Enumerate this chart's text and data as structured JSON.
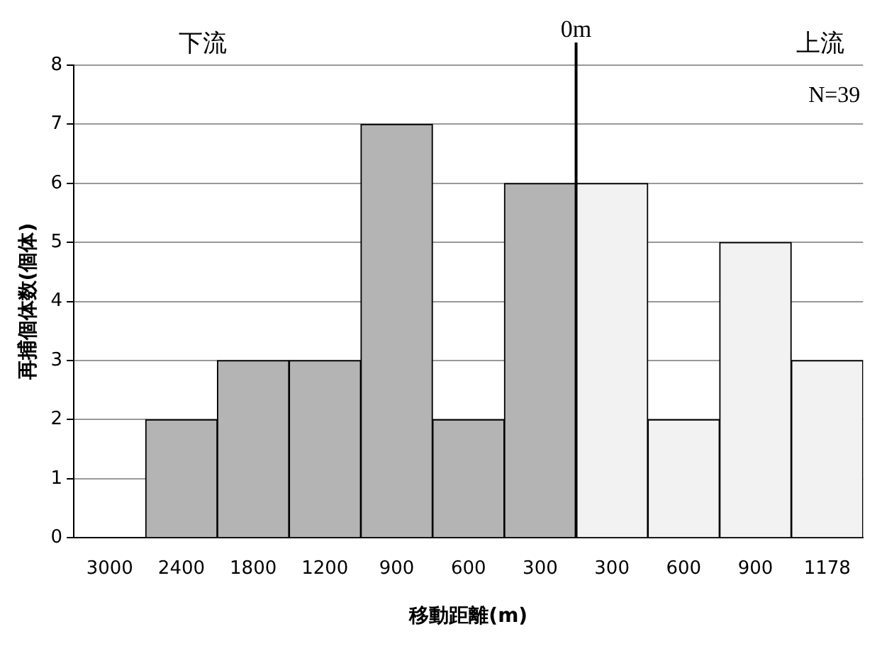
{
  "chart_data": {
    "type": "bar",
    "xlabel": "移動距離(m)",
    "ylabel": "再捕個体数(個体)",
    "categories": [
      "3000",
      "2400",
      "1800",
      "1200",
      "900",
      "600",
      "300",
      "300",
      "600",
      "900",
      "1178"
    ],
    "values": [
      0,
      2,
      3,
      3,
      7,
      2,
      6,
      6,
      2,
      5,
      3
    ],
    "colors": [
      "#b4b4b4",
      "#b4b4b4",
      "#b4b4b4",
      "#b4b4b4",
      "#b4b4b4",
      "#b4b4b4",
      "#b4b4b4",
      "#f2f2f2",
      "#f2f2f2",
      "#f2f2f2",
      "#f2f2f2"
    ],
    "ylim": [
      0,
      8
    ],
    "yticks": [
      0,
      1,
      2,
      3,
      4,
      5,
      6,
      7,
      8
    ],
    "grid": "y",
    "legend": false,
    "ref_lines": [
      {
        "axis": "x",
        "value": "300",
        "label": "0m",
        "color": "#000000"
      }
    ],
    "annotations": [
      "下流",
      "上流",
      "N=39"
    ]
  }
}
